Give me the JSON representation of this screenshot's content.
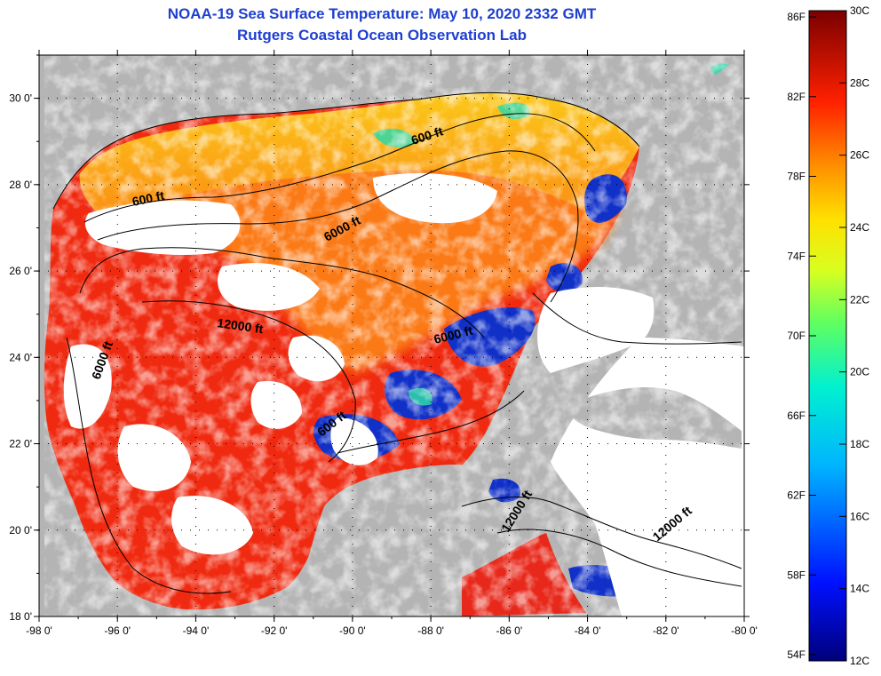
{
  "title": {
    "line1": "NOAA-19 Sea Surface Temperature:  May 10, 2020 2332 GMT",
    "line2": "Rutgers Coastal Ocean Observation Lab"
  },
  "map": {
    "lat_ticks": [
      "30 0'",
      "28 0'",
      "26 0'",
      "24 0'",
      "22 0'",
      "20 0'",
      "18 0'"
    ],
    "lon_ticks": [
      "-98 0'",
      "-96 0'",
      "-94 0'",
      "-92 0'",
      "-90 0'",
      "-88 0'",
      "-86 0'",
      "-84 0'",
      "-82 0'",
      "-80 0'"
    ],
    "contour_labels": [
      "600 ft",
      "600 ft",
      "6000 ft",
      "12000 ft",
      "6000 ft",
      "6000 ft",
      "600 ft",
      "12000 ft",
      "12000 ft"
    ],
    "colors": {
      "land": "#b4b4b4",
      "cloud": "#ffffff",
      "warm": "#f02a10",
      "mid": "#fb7a12",
      "coastal": "#fbb418",
      "cool": "#1030c8"
    }
  },
  "colorbar": {
    "fahrenheit": [
      "86F",
      "82F",
      "78F",
      "74F",
      "70F",
      "66F",
      "62F",
      "58F",
      "54F"
    ],
    "celsius": [
      "30C",
      "28C",
      "26C",
      "24C",
      "22C",
      "20C",
      "18C",
      "16C",
      "14C",
      "12C"
    ]
  }
}
